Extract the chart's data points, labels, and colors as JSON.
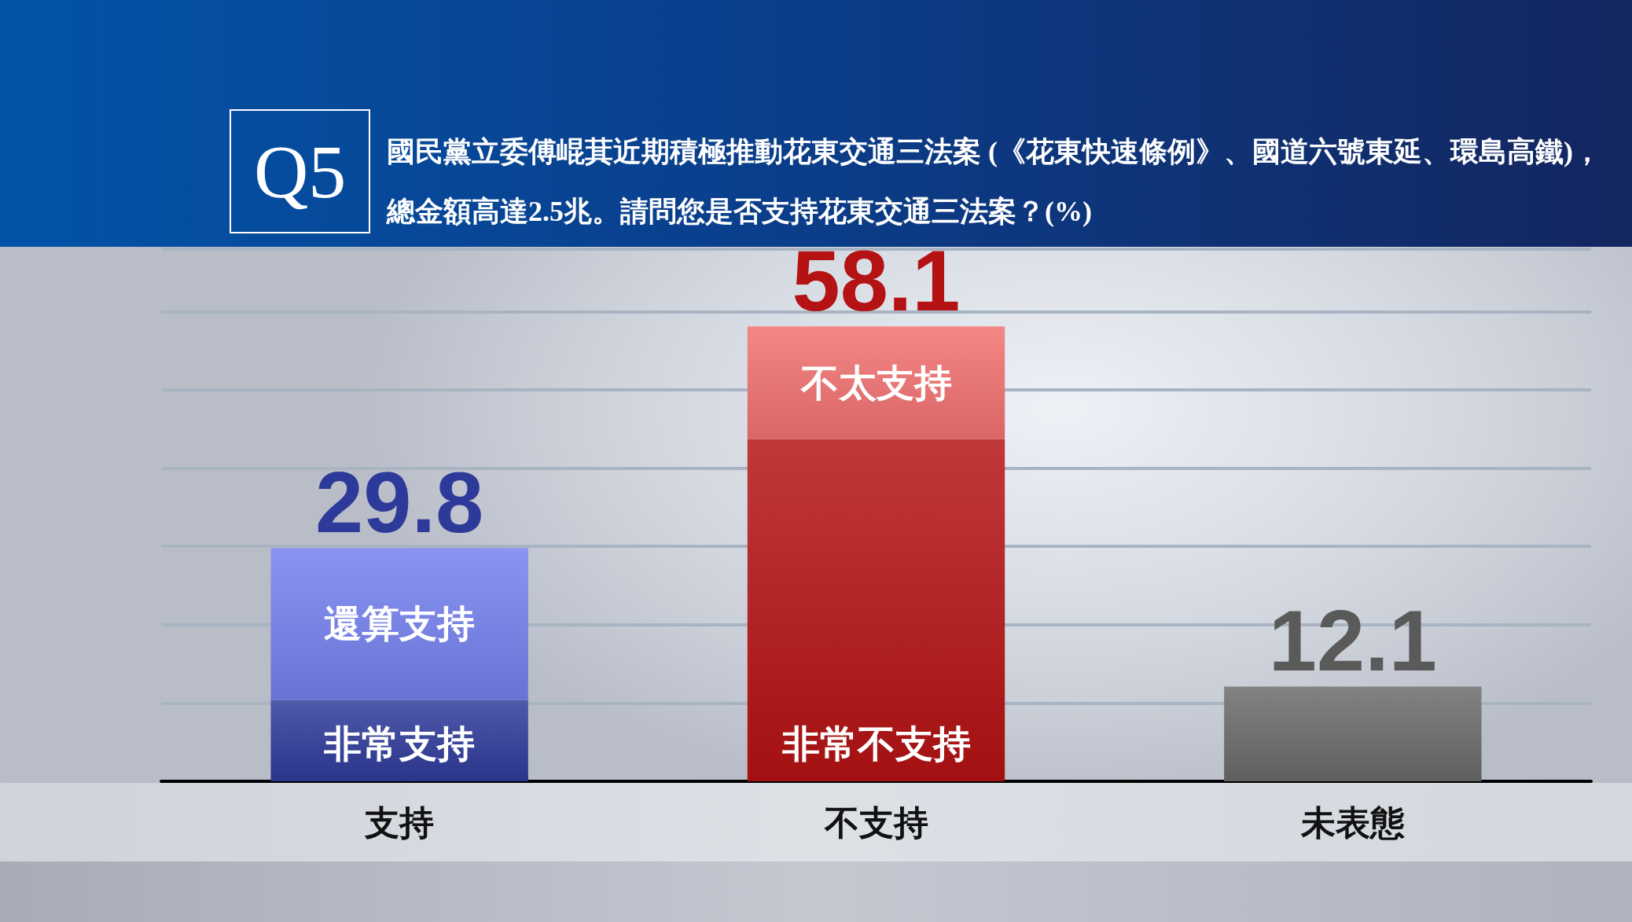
{
  "chart_data": {
    "type": "bar",
    "title": "Q5",
    "subtitle": "國民黨立委傅崐萁近期積極推動花東交通三法案 (《花東快速條例》、國道六號東延、環島高鐵)，總金額高達2.5兆。請問您是否支持花東交通三法案？(%)",
    "categories": [
      "支持",
      "不支持",
      "未表態"
    ],
    "stacked": true,
    "series": [
      {
        "name": "非常支持",
        "color": "#2e3a9a",
        "values": [
          10.4,
          null,
          null
        ]
      },
      {
        "name": "還算支持",
        "color": "#7480ee",
        "values": [
          19.4,
          null,
          null
        ]
      },
      {
        "name": "非常不支持",
        "color": "#b51213",
        "values": [
          null,
          43.7,
          null
        ]
      },
      {
        "name": "不太支持",
        "color": "#f27070",
        "values": [
          null,
          14.4,
          null
        ]
      },
      {
        "color": "#6a6a6a",
        "values": [
          null,
          null,
          12.1
        ],
        "value_labels": [
          null,
          null,
          "12.1"
        ]
      }
    ],
    "totals": [
      "29.8",
      "58.1",
      null
    ],
    "grid": "y",
    "tick_labels": "x"
  }
}
